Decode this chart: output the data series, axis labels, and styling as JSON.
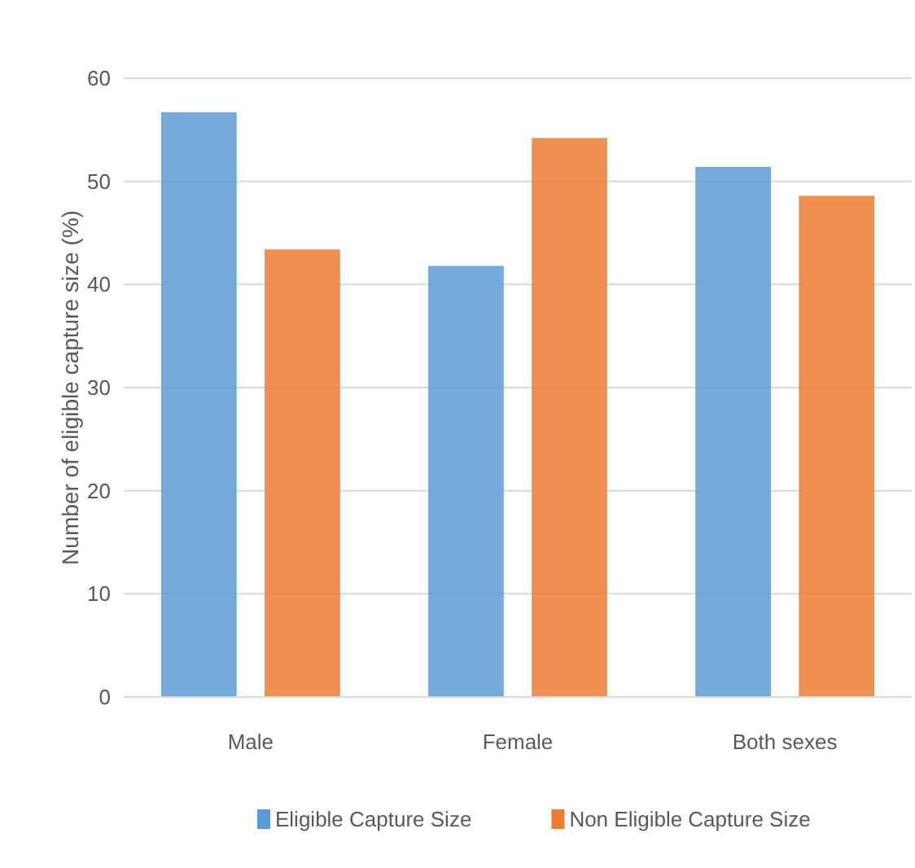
{
  "chart_data": {
    "type": "bar",
    "ylabel": "Number of eligible capture size (%)",
    "categories": [
      "Male",
      "Female",
      "Both sexes"
    ],
    "series": [
      {
        "name": "Eligible Capture Size",
        "color": "#5b9bd5",
        "values": [
          56.7,
          41.8,
          51.4
        ]
      },
      {
        "name": "Non Eligible Capture Size",
        "color": "#ed7d31",
        "values": [
          43.4,
          54.2,
          48.6
        ]
      }
    ],
    "ylim": [
      0,
      60
    ],
    "yticks": [
      0,
      10,
      20,
      30,
      40,
      50,
      60
    ],
    "grid": "y",
    "legend": "bottom"
  }
}
